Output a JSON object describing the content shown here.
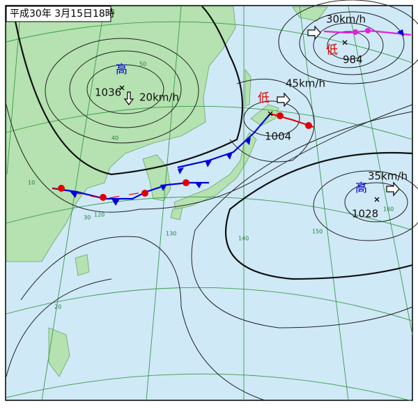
{
  "header": {
    "title": "平成30年 3月15日18時"
  },
  "systems": [
    {
      "kind": "高",
      "pressure": "1036",
      "speed": "20km/h"
    },
    {
      "kind": "低",
      "pressure": "1004",
      "speed": "45km/h"
    },
    {
      "kind": "低",
      "pressure": "984",
      "speed": "30km/h"
    },
    {
      "kind": "高",
      "pressure": "1028",
      "speed": "35km/h"
    }
  ],
  "grid_labels": {
    "latitudes": [
      "50",
      "40",
      "30",
      "20",
      "10"
    ],
    "longitudes": [
      "120",
      "130",
      "140",
      "150",
      "160"
    ]
  }
}
